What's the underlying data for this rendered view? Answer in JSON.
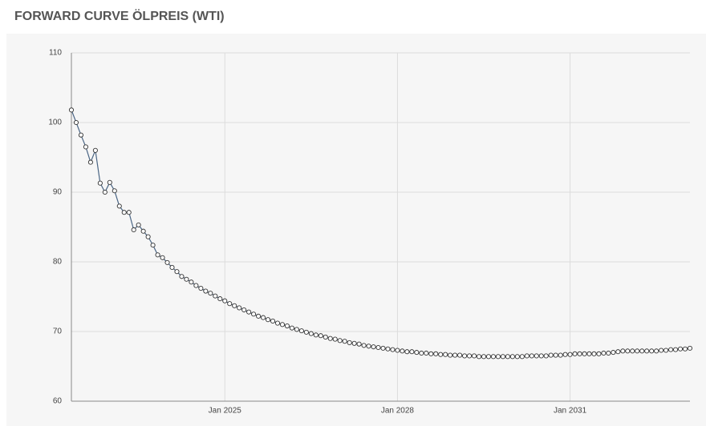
{
  "chart_data": {
    "type": "line",
    "title": "FORWARD CURVE ÖLPREIS (WTI)",
    "x": [
      "2022-05",
      "2022-06",
      "2022-07",
      "2022-08",
      "2022-09",
      "2022-10",
      "2022-11",
      "2022-12",
      "2023-01",
      "2023-02",
      "2023-03",
      "2023-04",
      "2023-05",
      "2023-06",
      "2023-07",
      "2023-08",
      "2023-09",
      "2023-10",
      "2023-11",
      "2023-12",
      "2024-01",
      "2024-02",
      "2024-03",
      "2024-04",
      "2024-05",
      "2024-06",
      "2024-07",
      "2024-08",
      "2024-09",
      "2024-10",
      "2024-11",
      "2024-12",
      "2025-01",
      "2025-02",
      "2025-03",
      "2025-04",
      "2025-05",
      "2025-06",
      "2025-07",
      "2025-08",
      "2025-09",
      "2025-10",
      "2025-11",
      "2025-12",
      "2026-01",
      "2026-02",
      "2026-03",
      "2026-04",
      "2026-05",
      "2026-06",
      "2026-07",
      "2026-08",
      "2026-09",
      "2026-10",
      "2026-11",
      "2026-12",
      "2027-01",
      "2027-02",
      "2027-03",
      "2027-04",
      "2027-05",
      "2027-06",
      "2027-07",
      "2027-08",
      "2027-09",
      "2027-10",
      "2027-11",
      "2027-12",
      "2028-01",
      "2028-02",
      "2028-03",
      "2028-04",
      "2028-05",
      "2028-06",
      "2028-07",
      "2028-08",
      "2028-09",
      "2028-10",
      "2028-11",
      "2028-12",
      "2029-01",
      "2029-02",
      "2029-03",
      "2029-04",
      "2029-05",
      "2029-06",
      "2029-07",
      "2029-08",
      "2029-09",
      "2029-10",
      "2029-11",
      "2029-12",
      "2030-01",
      "2030-02",
      "2030-03",
      "2030-04",
      "2030-05",
      "2030-06",
      "2030-07",
      "2030-08",
      "2030-09",
      "2030-10",
      "2030-11",
      "2030-12",
      "2031-01",
      "2031-02",
      "2031-03",
      "2031-04",
      "2031-05",
      "2031-06",
      "2031-07",
      "2031-08",
      "2031-09",
      "2031-10",
      "2031-11",
      "2031-12",
      "2032-01",
      "2032-02",
      "2032-03",
      "2032-04",
      "2032-05",
      "2032-06",
      "2032-07",
      "2032-08",
      "2032-09",
      "2032-10",
      "2032-11",
      "2032-12",
      "2033-01",
      "2033-02"
    ],
    "series": [
      {
        "color": "#4a6584",
        "values": [
          101.8,
          100.0,
          98.2,
          96.5,
          94.3,
          96.0,
          91.3,
          90.0,
          91.4,
          90.2,
          88.0,
          87.1,
          87.1,
          84.6,
          85.3,
          84.4,
          83.6,
          82.4,
          81.0,
          80.6,
          79.9,
          79.2,
          78.6,
          77.9,
          77.5,
          77.1,
          76.6,
          76.2,
          75.8,
          75.5,
          75.1,
          74.7,
          74.4,
          74.0,
          73.7,
          73.4,
          73.1,
          72.8,
          72.5,
          72.2,
          72.0,
          71.7,
          71.5,
          71.2,
          71.0,
          70.8,
          70.5,
          70.3,
          70.1,
          69.9,
          69.7,
          69.5,
          69.4,
          69.2,
          69.0,
          68.9,
          68.7,
          68.6,
          68.4,
          68.3,
          68.2,
          68.0,
          67.9,
          67.8,
          67.7,
          67.6,
          67.5,
          67.4,
          67.3,
          67.2,
          67.1,
          67.1,
          67.0,
          66.9,
          66.9,
          66.8,
          66.8,
          66.7,
          66.7,
          66.6,
          66.6,
          66.6,
          66.5,
          66.5,
          66.5,
          66.4,
          66.4,
          66.4,
          66.4,
          66.4,
          66.4,
          66.4,
          66.4,
          66.4,
          66.4,
          66.5,
          66.5,
          66.5,
          66.5,
          66.5,
          66.6,
          66.6,
          66.6,
          66.7,
          66.7,
          66.8,
          66.8,
          66.8,
          66.8,
          66.8,
          66.8,
          66.9,
          66.9,
          67.0,
          67.1,
          67.2,
          67.2,
          67.2,
          67.2,
          67.2,
          67.2,
          67.2,
          67.2,
          67.3,
          67.3,
          67.4,
          67.4,
          67.5,
          67.5,
          67.6
        ]
      }
    ],
    "xlim": [
      "2022-05",
      "2033-02"
    ],
    "xticks": [
      {
        "value": "2025-01",
        "label": "Jan 2025"
      },
      {
        "value": "2028-01",
        "label": "Jan 2028"
      },
      {
        "value": "2031-01",
        "label": "Jan 2031"
      }
    ],
    "ylim": [
      60,
      110
    ],
    "yticks": [
      60,
      70,
      80,
      90,
      100,
      110
    ],
    "grid": true
  }
}
